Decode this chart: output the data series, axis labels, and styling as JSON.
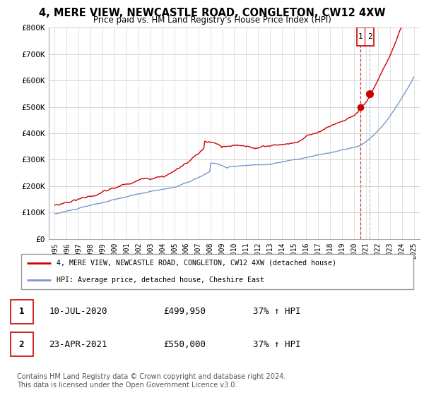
{
  "title": "4, MERE VIEW, NEWCASTLE ROAD, CONGLETON, CW12 4XW",
  "subtitle": "Price paid vs. HM Land Registry's House Price Index (HPI)",
  "ylim": [
    0,
    800000
  ],
  "yticks": [
    0,
    100000,
    200000,
    300000,
    400000,
    500000,
    600000,
    700000,
    800000
  ],
  "ytick_labels": [
    "£0",
    "£100K",
    "£200K",
    "£300K",
    "£400K",
    "£500K",
    "£600K",
    "£700K",
    "£800K"
  ],
  "xlim": [
    1994.5,
    2025.5
  ],
  "line1_color": "#cc0000",
  "line2_color": "#7799cc",
  "transaction1_x": 2020.53,
  "transaction1_y": 499950,
  "transaction2_x": 2021.31,
  "transaction2_y": 550000,
  "vline1_color": "#cc0000",
  "vline2_color": "#99bbdd",
  "legend_line1": "4, MERE VIEW, NEWCASTLE ROAD, CONGLETON, CW12 4XW (detached house)",
  "legend_line2": "HPI: Average price, detached house, Cheshire East",
  "table_rows": [
    {
      "num": "1",
      "date": "10-JUL-2020",
      "price": "£499,950",
      "change": "37% ↑ HPI"
    },
    {
      "num": "2",
      "date": "23-APR-2021",
      "price": "£550,000",
      "change": "37% ↑ HPI"
    }
  ],
  "footnote": "Contains HM Land Registry data © Crown copyright and database right 2024.\nThis data is licensed under the Open Government Licence v3.0.",
  "background_color": "#ffffff",
  "grid_color": "#cccccc"
}
